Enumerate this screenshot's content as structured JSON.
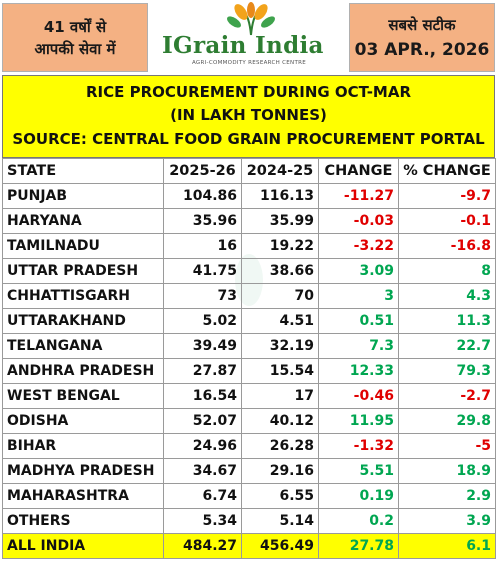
{
  "header": {
    "left_line1": "41 वर्षों से",
    "left_line2": "आपकी सेवा में",
    "logo_name": "IGrain India",
    "logo_tagline": "AGRI-COMMODITY RESEARCH CENTRE",
    "right_line1": "सबसे सटीक",
    "right_date": "03 APR., 2026"
  },
  "title": {
    "line1": "RICE PROCUREMENT DURING OCT-MAR",
    "line2": "(IN LAKH TONNES)",
    "line3": "SOURCE: CENTRAL FOOD GRAIN PROCUREMENT PORTAL"
  },
  "table": {
    "headers": [
      "STATE",
      "2025-26",
      "2024-25",
      "CHANGE",
      "% CHANGE"
    ],
    "rows": [
      {
        "state": "PUNJAB",
        "y2026": "104.86",
        "y2025": "116.13",
        "change": "-11.27",
        "pct": "-9.7",
        "sign": "neg"
      },
      {
        "state": "HARYANA",
        "y2026": "35.96",
        "y2025": "35.99",
        "change": "-0.03",
        "pct": "-0.1",
        "sign": "neg"
      },
      {
        "state": "TAMILNADU",
        "y2026": "16",
        "y2025": "19.22",
        "change": "-3.22",
        "pct": "-16.8",
        "sign": "neg"
      },
      {
        "state": "UTTAR PRADESH",
        "y2026": "41.75",
        "y2025": "38.66",
        "change": "3.09",
        "pct": "8",
        "sign": "pos"
      },
      {
        "state": "CHHATTISGARH",
        "y2026": "73",
        "y2025": "70",
        "change": "3",
        "pct": "4.3",
        "sign": "pos"
      },
      {
        "state": "UTTARAKHAND",
        "y2026": "5.02",
        "y2025": "4.51",
        "change": "0.51",
        "pct": "11.3",
        "sign": "pos"
      },
      {
        "state": "TELANGANA",
        "y2026": "39.49",
        "y2025": "32.19",
        "change": "7.3",
        "pct": "22.7",
        "sign": "pos"
      },
      {
        "state": "ANDHRA PRADESH",
        "y2026": "27.87",
        "y2025": "15.54",
        "change": "12.33",
        "pct": "79.3",
        "sign": "pos"
      },
      {
        "state": "WEST BENGAL",
        "y2026": "16.54",
        "y2025": "17",
        "change": "-0.46",
        "pct": "-2.7",
        "sign": "neg"
      },
      {
        "state": "ODISHA",
        "y2026": "52.07",
        "y2025": "40.12",
        "change": "11.95",
        "pct": "29.8",
        "sign": "pos"
      },
      {
        "state": "BIHAR",
        "y2026": "24.96",
        "y2025": "26.28",
        "change": "-1.32",
        "pct": "-5",
        "sign": "neg"
      },
      {
        "state": "MADHYA PRADESH",
        "y2026": "34.67",
        "y2025": "29.16",
        "change": "5.51",
        "pct": "18.9",
        "sign": "pos"
      },
      {
        "state": "MAHARASHTRA",
        "y2026": "6.74",
        "y2025": "6.55",
        "change": "0.19",
        "pct": "2.9",
        "sign": "pos"
      },
      {
        "state": "OTHERS",
        "y2026": "5.34",
        "y2025": "5.14",
        "change": "0.2",
        "pct": "3.9",
        "sign": "pos"
      }
    ],
    "total": {
      "state": "ALL INDIA",
      "y2026": "484.27",
      "y2025": "456.49",
      "change": "27.78",
      "pct": "6.1",
      "sign": "pos"
    }
  },
  "colors": {
    "negative": "#e00000",
    "positive": "#00a651",
    "highlight": "#ffff00",
    "badge": "#f4b183",
    "brand": "#2e7d32"
  }
}
